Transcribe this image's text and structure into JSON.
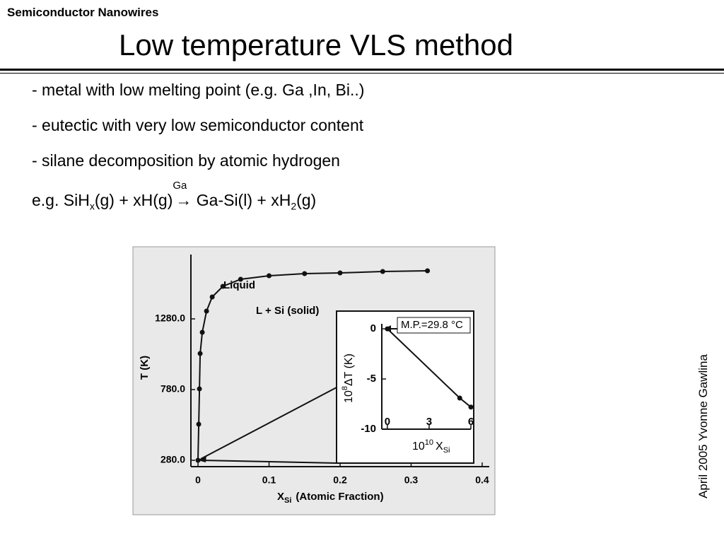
{
  "header": {
    "section": "Semiconductor Nanowires",
    "title": "Low temperature VLS method"
  },
  "bullets": [
    "- metal with low melting point (e.g. Ga ,In, Bi..)",
    "- eutectic with very low semiconductor content",
    "- silane decomposition by atomic hydrogen"
  ],
  "equation": {
    "parts": [
      "e.g. SiH",
      "x",
      "(g) + xH(g)",
      "Ga",
      "→",
      "Ga-Si(l) + xH",
      "2",
      "(g)"
    ]
  },
  "footer": "April 2005 Yvonne Gawlina",
  "figure": {
    "type": "line",
    "ylabel": "T (K)",
    "xlabel": {
      "symbol": "X",
      "sub": "Si",
      "text": "(Atomic Fraction)"
    },
    "annotations": [
      "Liquid",
      "L + Si (solid)"
    ],
    "xlim": [
      -0.01,
      0.41
    ],
    "ylim": [
      235,
      1735
    ],
    "xticks": [
      0,
      0.1,
      0.2,
      0.3,
      0.4
    ],
    "yticks": [
      {
        "value": 280,
        "label": "280.0"
      },
      {
        "value": 780,
        "label": "780.0"
      },
      {
        "value": 1280,
        "label": "1280.0"
      }
    ],
    "series": [
      {
        "color": "#111111",
        "x": [
          0,
          0.001,
          0.002,
          0.003,
          0.006,
          0.012,
          0.02,
          0.035,
          0.06,
          0.1,
          0.15,
          0.2,
          0.26,
          0.323
        ],
        "values": [
          280,
          535,
          785,
          1035,
          1185,
          1335,
          1435,
          1510,
          1560,
          1585,
          1600,
          1605,
          1615,
          1620
        ]
      }
    ],
    "inset": {
      "type": "line",
      "ylabel": {
        "base": "10",
        "exp": "8",
        "text": "ΔT (K)"
      },
      "xlabel": {
        "base": "10",
        "exp": "10",
        "symbol": "X",
        "sub": "Si"
      },
      "annotation": "M.P.=29.8 °C",
      "xlim": [
        -0.4,
        6
      ],
      "ylim": [
        -10,
        0.5
      ],
      "xticks": [
        0,
        3,
        6
      ],
      "yticks": [
        0,
        -5,
        -10
      ],
      "series": [
        {
          "color": "#111111",
          "x": [
            0,
            5.2,
            6
          ],
          "values": [
            0,
            -6.9,
            -7.8
          ]
        }
      ]
    }
  }
}
